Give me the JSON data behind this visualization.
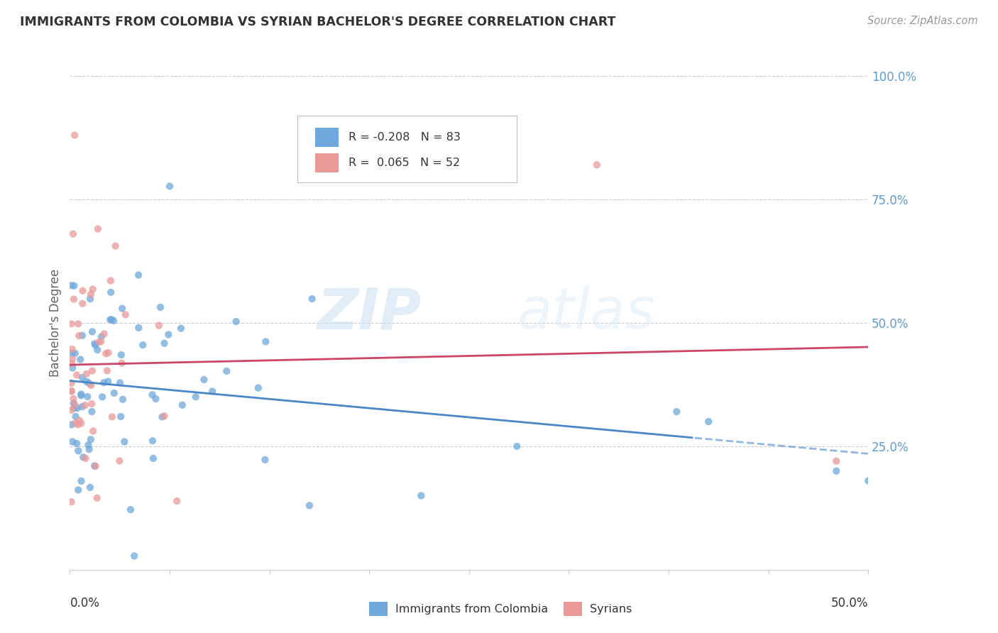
{
  "title": "IMMIGRANTS FROM COLOMBIA VS SYRIAN BACHELOR'S DEGREE CORRELATION CHART",
  "source": "Source: ZipAtlas.com",
  "ylabel": "Bachelor's Degree",
  "xlim": [
    0.0,
    0.5
  ],
  "ylim": [
    0.0,
    1.0
  ],
  "colombia_R": -0.208,
  "colombia_N": 83,
  "syrian_R": 0.065,
  "syrian_N": 52,
  "colombia_color": "#6fa8dc",
  "syrian_color": "#ea9999",
  "colombia_line_color": "#4a86c8",
  "syrian_line_color": "#cc4466",
  "watermark_zip": "ZIP",
  "watermark_atlas": "atlas",
  "background_color": "#ffffff",
  "grid_color": "#cccccc",
  "tick_color": "#5b9bd5",
  "title_color": "#333333",
  "legend_line1": "R = -0.208   N = 83",
  "legend_line2": "R =  0.065   N = 52",
  "bottom_legend1": "Immigrants from Colombia",
  "bottom_legend2": "Syrians"
}
